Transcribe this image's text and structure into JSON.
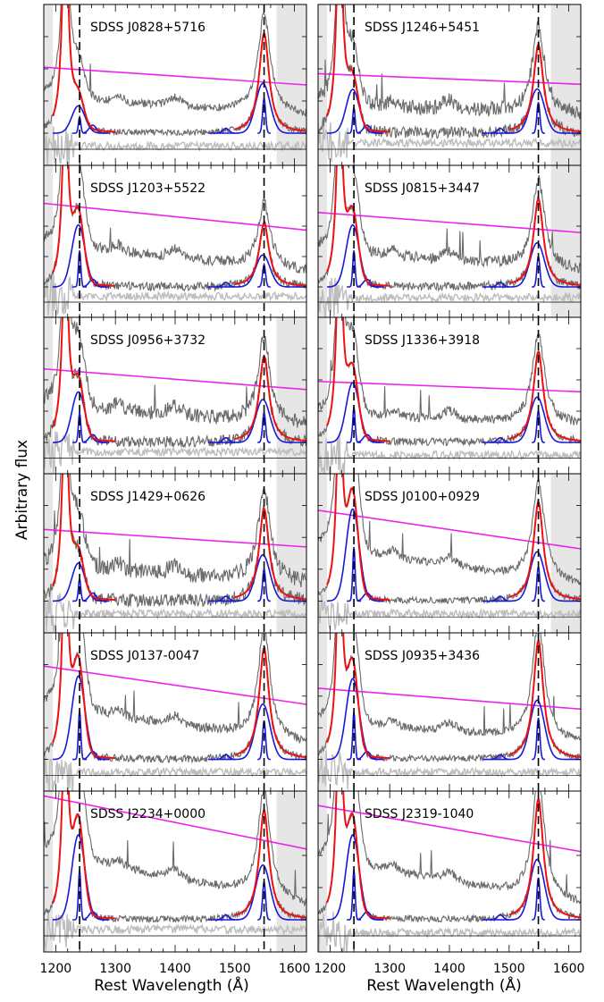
{
  "figure": {
    "ylabel": "Arbitrary flux",
    "xlabel": "Rest Wavelength (Å)"
  },
  "chart_data": {
    "type": "line",
    "x_axis": {
      "label": "Rest Wavelength (Å)",
      "range": [
        1180,
        1620
      ],
      "ticks": [
        1200,
        1300,
        1400,
        1500,
        1600
      ]
    },
    "y_axis": {
      "label": "Arbitrary flux"
    },
    "reference_lines": [
      1240,
      1549
    ],
    "shaded_excluded_regions": [
      [
        1180,
        1195
      ],
      [
        1570,
        1620
      ]
    ],
    "panels": [
      {
        "name": "SDSS J0828+5716",
        "col": 0,
        "row": 0,
        "left_shade": true,
        "right_shade": true,
        "civ_peak": 0.62,
        "nv_peak": 0.2,
        "lya_top": 1.0,
        "baseline": 0.36,
        "slope": 0.1,
        "noise": 0.05,
        "residual": 0.12
      },
      {
        "name": "SDSS J1246+5451",
        "col": 1,
        "row": 0,
        "left_shade": true,
        "right_shade": true,
        "civ_peak": 0.55,
        "nv_peak": 0.32,
        "lya_top": 1.0,
        "baseline": 0.36,
        "slope": 0.06,
        "noise": 0.09,
        "residual": 0.14
      },
      {
        "name": "SDSS J1203+5522",
        "col": 0,
        "row": 1,
        "left_shade": true,
        "right_shade": false,
        "civ_peak": 0.42,
        "nv_peak": 0.48,
        "lya_top": 0.9,
        "baseline": 0.44,
        "slope": 0.16,
        "noise": 0.07,
        "residual": 0.14
      },
      {
        "name": "SDSS J0815+3447",
        "col": 1,
        "row": 1,
        "left_shade": true,
        "right_shade": true,
        "civ_peak": 0.58,
        "nv_peak": 0.48,
        "lya_top": 0.95,
        "baseline": 0.42,
        "slope": 0.12,
        "noise": 0.07,
        "residual": 0.13
      },
      {
        "name": "SDSS J0956+3732",
        "col": 0,
        "row": 2,
        "left_shade": true,
        "right_shade": true,
        "civ_peak": 0.55,
        "nv_peak": 0.38,
        "lya_top": 0.92,
        "baseline": 0.4,
        "slope": 0.12,
        "noise": 0.09,
        "residual": 0.14
      },
      {
        "name": "SDSS J1336+3918",
        "col": 1,
        "row": 2,
        "left_shade": true,
        "right_shade": false,
        "civ_peak": 0.58,
        "nv_peak": 0.45,
        "lya_top": 1.0,
        "baseline": 0.38,
        "slope": 0.06,
        "noise": 0.06,
        "residual": 0.12
      },
      {
        "name": "SDSS J1429+0626",
        "col": 0,
        "row": 3,
        "left_shade": true,
        "right_shade": true,
        "civ_peak": 0.58,
        "nv_peak": 0.28,
        "lya_top": 0.92,
        "baseline": 0.4,
        "slope": 0.1,
        "noise": 0.1,
        "residual": 0.12
      },
      {
        "name": "SDSS J0100+0929",
        "col": 1,
        "row": 3,
        "left_shade": true,
        "right_shade": true,
        "civ_peak": 0.62,
        "nv_peak": 0.68,
        "lya_top": 0.95,
        "baseline": 0.4,
        "slope": 0.22,
        "noise": 0.05,
        "residual": 0.12
      },
      {
        "name": "SDSS J0137-0047",
        "col": 0,
        "row": 4,
        "left_shade": true,
        "right_shade": false,
        "civ_peak": 0.7,
        "nv_peak": 0.62,
        "lya_top": 1.0,
        "baseline": 0.42,
        "slope": 0.22,
        "noise": 0.06,
        "residual": 0.12
      },
      {
        "name": "SDSS J0935+3436",
        "col": 1,
        "row": 4,
        "left_shade": true,
        "right_shade": false,
        "civ_peak": 0.75,
        "nv_peak": 0.6,
        "lya_top": 1.0,
        "baseline": 0.38,
        "slope": 0.12,
        "noise": 0.05,
        "residual": 0.12
      },
      {
        "name": "SDSS J2234+0000",
        "col": 0,
        "row": 5,
        "left_shade": true,
        "right_shade": true,
        "civ_peak": 0.68,
        "nv_peak": 0.62,
        "lya_top": 0.95,
        "baseline": 0.52,
        "slope": 0.3,
        "noise": 0.05,
        "residual": 0.14
      },
      {
        "name": "SDSS J2319-1040",
        "col": 1,
        "row": 5,
        "left_shade": true,
        "right_shade": false,
        "civ_peak": 0.75,
        "nv_peak": 0.62,
        "lya_top": 1.0,
        "baseline": 0.5,
        "slope": 0.26,
        "noise": 0.05,
        "residual": 0.12
      }
    ],
    "colors": {
      "spectrum": "#6a6a6a",
      "residual": "#bdbdbd",
      "total_fit": "#ee1111",
      "components": "#1818d6",
      "continuum": "#ee22ee",
      "zero_line": "#000000",
      "shade": "#e6e6e6"
    }
  }
}
